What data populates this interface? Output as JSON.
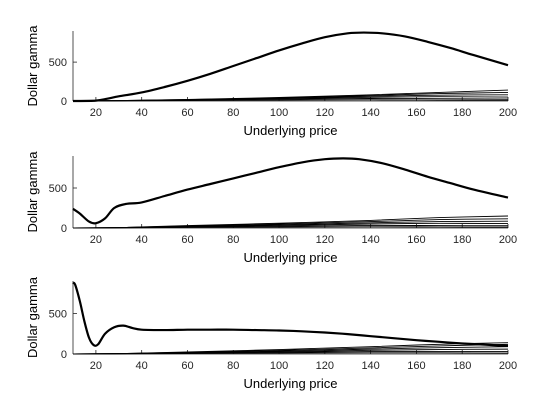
{
  "chart_data": [
    {
      "type": "line",
      "xlabel": "Underlying price",
      "ylabel": "Dollar gamma",
      "xlim": [
        10,
        200
      ],
      "ylim": [
        0,
        900
      ],
      "xticks": [
        "20",
        "40",
        "60",
        "80",
        "100",
        "120",
        "140",
        "160",
        "180",
        "200"
      ],
      "yticks": [
        "0",
        "500"
      ],
      "bold_series": {
        "x": [
          10,
          20,
          25,
          30,
          40,
          50,
          60,
          70,
          80,
          90,
          100,
          110,
          120,
          130,
          137,
          145,
          155,
          165,
          175,
          185,
          200
        ],
        "y": [
          0,
          5,
          30,
          60,
          110,
          180,
          260,
          350,
          450,
          550,
          650,
          740,
          820,
          870,
          880,
          870,
          830,
          760,
          680,
          590,
          460
        ]
      },
      "thin_series": [
        {
          "x": [
            10,
            30,
            60,
            100,
            140,
            170,
            200
          ],
          "y": [
            0,
            5,
            20,
            45,
            80,
            110,
            140
          ]
        },
        {
          "x": [
            10,
            30,
            60,
            100,
            140,
            170,
            200
          ],
          "y": [
            0,
            5,
            18,
            40,
            70,
            95,
            110
          ]
        },
        {
          "x": [
            10,
            30,
            60,
            100,
            140,
            170,
            200
          ],
          "y": [
            0,
            4,
            15,
            35,
            60,
            75,
            80
          ]
        },
        {
          "x": [
            10,
            30,
            60,
            100,
            140,
            170,
            200
          ],
          "y": [
            0,
            4,
            13,
            30,
            48,
            55,
            50
          ]
        },
        {
          "x": [
            10,
            30,
            60,
            100,
            140,
            170,
            200
          ],
          "y": [
            0,
            3,
            10,
            22,
            32,
            30,
            25
          ]
        },
        {
          "x": [
            10,
            30,
            60,
            100,
            140,
            170,
            200
          ],
          "y": [
            0,
            2,
            6,
            12,
            15,
            12,
            10
          ]
        }
      ]
    },
    {
      "type": "line",
      "xlabel": "Underlying price",
      "ylabel": "Dollar gamma",
      "xlim": [
        10,
        200
      ],
      "ylim": [
        0,
        900
      ],
      "xticks": [
        "20",
        "40",
        "60",
        "80",
        "100",
        "120",
        "140",
        "160",
        "180",
        "200"
      ],
      "yticks": [
        "0",
        "500"
      ],
      "bold_series": {
        "x": [
          10,
          13,
          17,
          20,
          24,
          28,
          33,
          40,
          50,
          60,
          70,
          80,
          90,
          100,
          110,
          120,
          128,
          135,
          145,
          155,
          165,
          175,
          185,
          200
        ],
        "y": [
          240,
          180,
          80,
          60,
          120,
          250,
          300,
          320,
          400,
          480,
          550,
          620,
          690,
          760,
          820,
          860,
          870,
          860,
          810,
          730,
          640,
          560,
          480,
          380
        ]
      },
      "thin_series": [
        {
          "x": [
            10,
            30,
            60,
            100,
            140,
            170,
            200
          ],
          "y": [
            0,
            5,
            30,
            60,
            95,
            130,
            150
          ]
        },
        {
          "x": [
            10,
            30,
            60,
            100,
            140,
            170,
            200
          ],
          "y": [
            0,
            5,
            25,
            50,
            80,
            105,
            115
          ]
        },
        {
          "x": [
            10,
            30,
            60,
            100,
            140,
            170,
            200
          ],
          "y": [
            0,
            4,
            20,
            40,
            65,
            80,
            85
          ]
        },
        {
          "x": [
            10,
            30,
            60,
            100,
            140,
            170,
            200
          ],
          "y": [
            0,
            4,
            16,
            32,
            50,
            58,
            55
          ]
        },
        {
          "x": [
            10,
            30,
            60,
            100,
            140,
            170,
            200
          ],
          "y": [
            0,
            3,
            12,
            22,
            32,
            30,
            28
          ]
        },
        {
          "x": [
            10,
            30,
            60,
            100,
            140,
            170,
            200
          ],
          "y": [
            0,
            2,
            7,
            12,
            15,
            13,
            10
          ]
        }
      ]
    },
    {
      "type": "line",
      "xlabel": "Underlying price",
      "ylabel": "Dollar gamma",
      "xlim": [
        10,
        200
      ],
      "ylim": [
        0,
        900
      ],
      "xticks": [
        "20",
        "40",
        "60",
        "80",
        "100",
        "120",
        "140",
        "160",
        "180",
        "200"
      ],
      "yticks": [
        "0",
        "500"
      ],
      "bold_series": {
        "x": [
          10,
          11,
          13,
          15,
          17,
          19,
          21,
          24,
          28,
          32,
          36,
          40,
          50,
          60,
          70,
          80,
          90,
          100,
          110,
          120,
          130,
          140,
          150,
          160,
          170,
          180,
          190,
          200
        ],
        "y": [
          880,
          850,
          650,
          400,
          200,
          110,
          120,
          250,
          330,
          350,
          320,
          300,
          295,
          300,
          300,
          300,
          295,
          290,
          280,
          265,
          245,
          220,
          195,
          170,
          150,
          130,
          115,
          100
        ]
      },
      "thin_series": [
        {
          "x": [
            10,
            30,
            60,
            100,
            140,
            170,
            200
          ],
          "y": [
            0,
            5,
            25,
            55,
            90,
            120,
            140
          ]
        },
        {
          "x": [
            10,
            30,
            60,
            100,
            140,
            170,
            200
          ],
          "y": [
            0,
            5,
            20,
            45,
            75,
            100,
            120
          ]
        },
        {
          "x": [
            10,
            30,
            60,
            100,
            140,
            170,
            200
          ],
          "y": [
            0,
            4,
            16,
            36,
            60,
            78,
            90
          ]
        },
        {
          "x": [
            10,
            30,
            60,
            100,
            140,
            170,
            200
          ],
          "y": [
            0,
            4,
            13,
            28,
            45,
            55,
            60
          ]
        },
        {
          "x": [
            10,
            30,
            60,
            100,
            140,
            170,
            200
          ],
          "y": [
            0,
            3,
            10,
            20,
            30,
            32,
            30
          ]
        },
        {
          "x": [
            10,
            30,
            60,
            100,
            140,
            170,
            200
          ],
          "y": [
            0,
            2,
            6,
            12,
            15,
            14,
            12
          ]
        }
      ]
    }
  ]
}
